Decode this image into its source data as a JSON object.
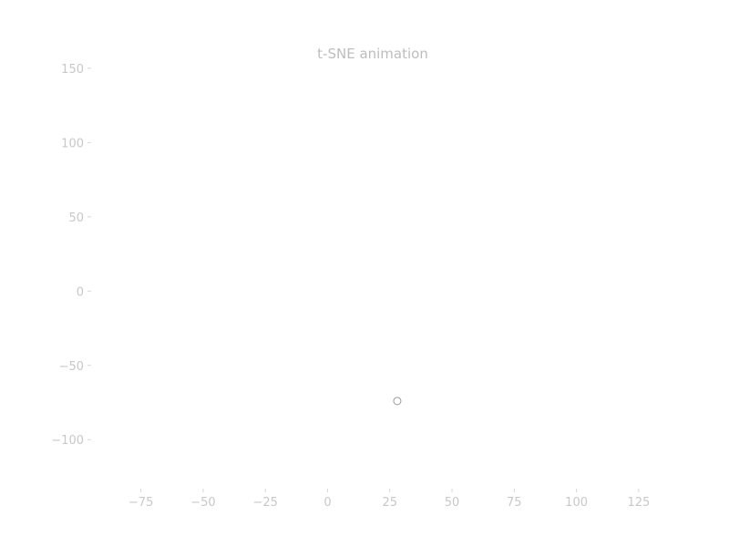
{
  "chart_data": {
    "type": "scatter",
    "title": "t-SNE animation",
    "xlabel": "",
    "ylabel": "",
    "xlim": [
      -95,
      132
    ],
    "ylim": [
      -133,
      153
    ],
    "xticks": [
      -75,
      -50,
      -25,
      0,
      25,
      50,
      75,
      100,
      125
    ],
    "xtick_labels": [
      "−75",
      "−50",
      "−25",
      "0",
      "25",
      "50",
      "75",
      "100",
      "125"
    ],
    "yticks": [
      150,
      100,
      50,
      0,
      -50,
      -100
    ],
    "ytick_labels": [
      "150",
      "100",
      "50",
      "0",
      "−50",
      "−100"
    ],
    "points": [
      {
        "x": 28,
        "y": -74
      }
    ],
    "grid": false,
    "legend": "none",
    "colors": {
      "marker_edge": "#9a9a9a",
      "marker_face": "#ffffff",
      "text": "#c8c8c8",
      "tick": "#d8d8d8"
    }
  }
}
